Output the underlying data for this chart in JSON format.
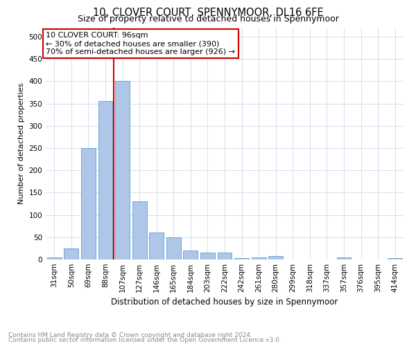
{
  "title": "10, CLOVER COURT, SPENNYMOOR, DL16 6FE",
  "subtitle": "Size of property relative to detached houses in Spennymoor",
  "xlabel": "Distribution of detached houses by size in Spennymoor",
  "ylabel": "Number of detached properties",
  "categories": [
    "31sqm",
    "50sqm",
    "69sqm",
    "88sqm",
    "107sqm",
    "127sqm",
    "146sqm",
    "165sqm",
    "184sqm",
    "203sqm",
    "222sqm",
    "242sqm",
    "261sqm",
    "280sqm",
    "299sqm",
    "318sqm",
    "337sqm",
    "357sqm",
    "376sqm",
    "395sqm",
    "414sqm"
  ],
  "values": [
    5,
    25,
    250,
    355,
    400,
    130,
    60,
    50,
    20,
    15,
    15,
    3,
    5,
    7,
    0,
    0,
    0,
    5,
    0,
    0,
    3
  ],
  "bar_color": "#aec6e8",
  "bar_edge_color": "#5a9fd4",
  "grid_color": "#d0d8e8",
  "red_line_x": 3.5,
  "red_line_label": "10 CLOVER COURT: 96sqm",
  "annotation_line1": "← 30% of detached houses are smaller (390)",
  "annotation_line2": "70% of semi-detached houses are larger (926) →",
  "annotation_box_color": "#ffffff",
  "annotation_box_edge_color": "#cc0000",
  "ylim": [
    0,
    520
  ],
  "yticks": [
    0,
    50,
    100,
    150,
    200,
    250,
    300,
    350,
    400,
    450,
    500
  ],
  "title_fontsize": 10.5,
  "subtitle_fontsize": 9,
  "xlabel_fontsize": 8.5,
  "ylabel_fontsize": 8,
  "tick_fontsize": 7.5,
  "footer_line1": "Contains HM Land Registry data © Crown copyright and database right 2024.",
  "footer_line2": "Contains public sector information licensed under the Open Government Licence v3.0.",
  "footer_color": "#888888",
  "footer_fontsize": 6.5
}
